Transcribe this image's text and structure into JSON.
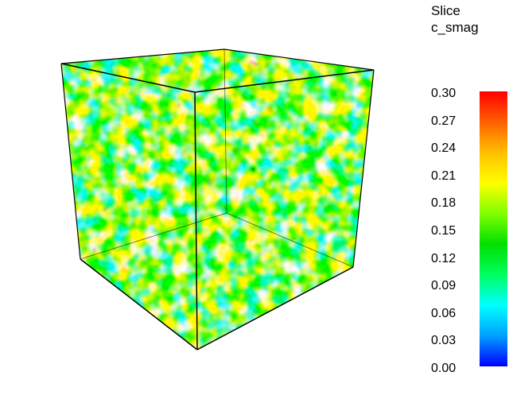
{
  "legend": {
    "title_line1": "Slice",
    "title_line2": "c_smag",
    "ticks": [
      "0.30",
      "0.27",
      "0.24",
      "0.21",
      "0.18",
      "0.15",
      "0.12",
      "0.09",
      "0.06",
      "0.03",
      "0.00"
    ],
    "range": [
      0.0,
      0.3
    ],
    "colormap": [
      "#0000ff",
      "#00a0ff",
      "#00ffff",
      "#00ff60",
      "#00e000",
      "#80ff00",
      "#ffff00",
      "#ffc000",
      "#ff6000",
      "#ff0000"
    ]
  },
  "scene": {
    "object": "cube-volume-slice",
    "edge_color": "#000000",
    "background": "#ffffff"
  }
}
